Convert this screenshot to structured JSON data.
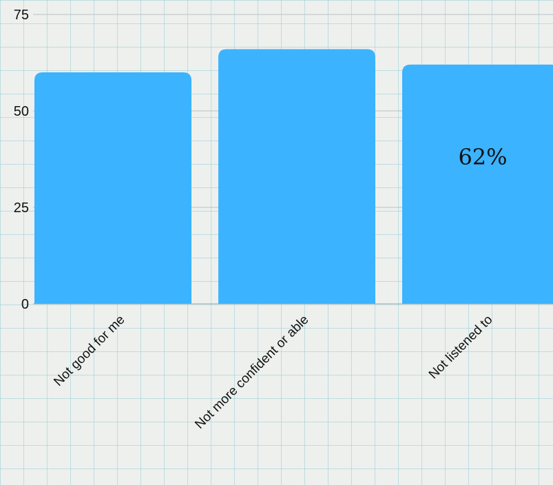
{
  "chart_data": {
    "type": "bar",
    "categories": [
      "Not good for me",
      "Not more confident or able",
      "Not listened to"
    ],
    "values": [
      60,
      66,
      62
    ],
    "data_labels": [
      "",
      "",
      "62%"
    ],
    "ylim": [
      0,
      75
    ],
    "yticks": [
      "0",
      "25",
      "50",
      "75"
    ],
    "grid": true,
    "bar_color": "#3bb3ff",
    "legend": "none"
  }
}
